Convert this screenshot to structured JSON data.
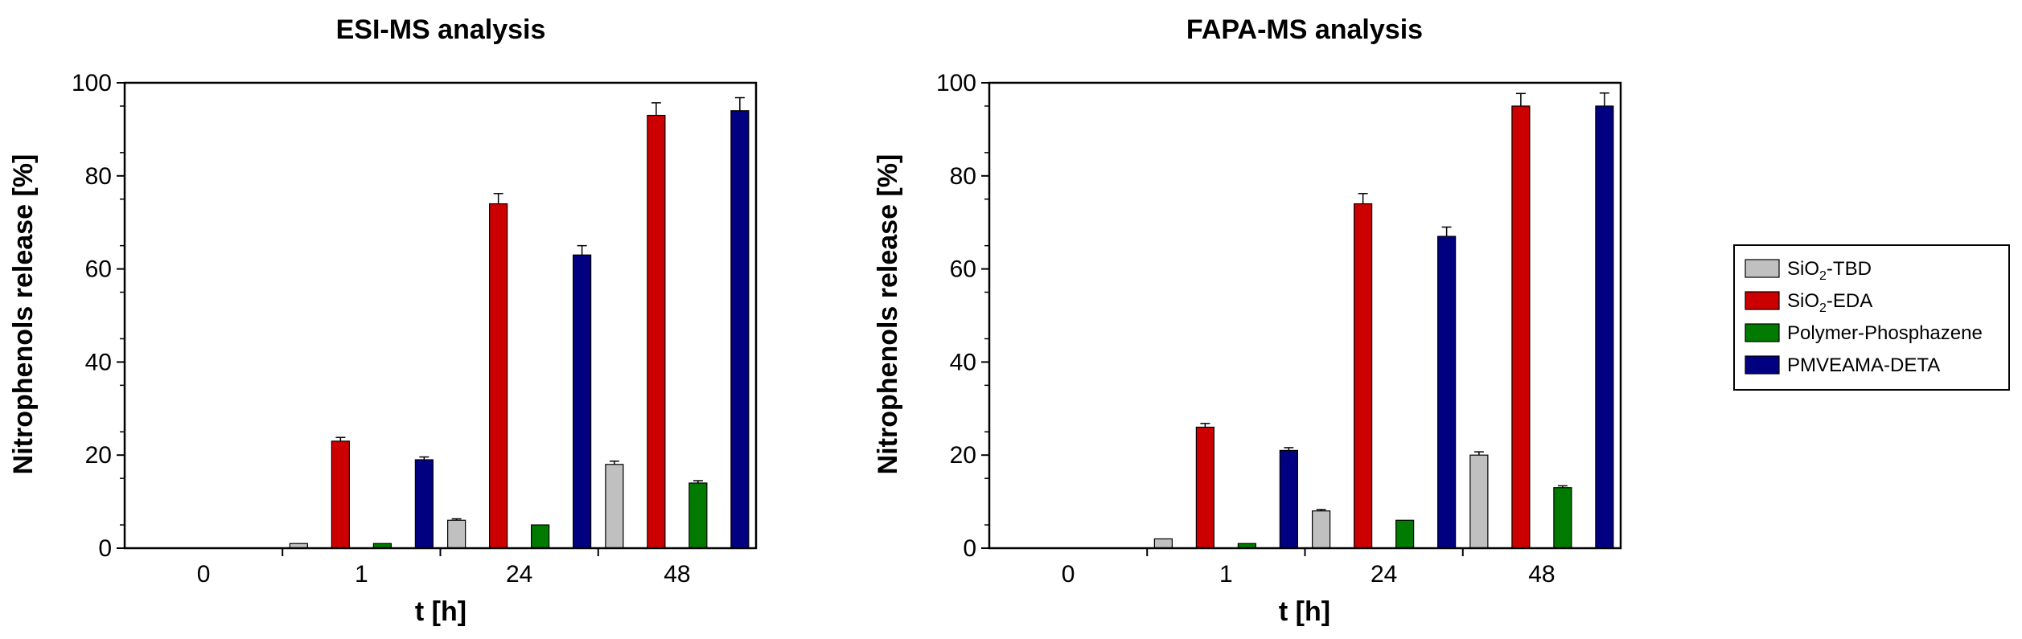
{
  "chart_data": [
    {
      "type": "bar",
      "title": "ESI-MS analysis",
      "xlabel": "t [h]",
      "ylabel": "Nitrophenols release [%]",
      "ylim": [
        0,
        100
      ],
      "yticks": [
        0,
        20,
        40,
        60,
        80,
        100
      ],
      "categories": [
        "0",
        "1",
        "24",
        "48"
      ],
      "grid": false,
      "series": [
        {
          "name": "SiO2-TBD",
          "values": [
            0,
            1,
            6,
            18
          ],
          "errors": [
            0,
            0,
            0.3,
            0.7
          ]
        },
        {
          "name": "SiO2-EDA",
          "values": [
            0,
            23,
            74,
            93
          ],
          "errors": [
            0,
            0.8,
            2.2,
            2.7
          ]
        },
        {
          "name": "Polymer-Phosphazene",
          "values": [
            0,
            1,
            5,
            14
          ],
          "errors": [
            0,
            0,
            0,
            0.5
          ]
        },
        {
          "name": "PMVEAMA-DETA",
          "values": [
            0,
            19,
            63,
            94
          ],
          "errors": [
            0,
            0.6,
            2.0,
            2.8
          ]
        }
      ]
    },
    {
      "type": "bar",
      "title": "FAPA-MS analysis",
      "xlabel": "t [h]",
      "ylabel": "Nitrophenols release [%]",
      "ylim": [
        0,
        100
      ],
      "yticks": [
        0,
        20,
        40,
        60,
        80,
        100
      ],
      "categories": [
        "0",
        "1",
        "24",
        "48"
      ],
      "grid": false,
      "series": [
        {
          "name": "SiO2-TBD",
          "values": [
            0,
            2,
            8,
            20
          ],
          "errors": [
            0,
            0,
            0.3,
            0.7
          ]
        },
        {
          "name": "SiO2-EDA",
          "values": [
            0,
            26,
            74,
            95
          ],
          "errors": [
            0,
            0.8,
            2.2,
            2.7
          ]
        },
        {
          "name": "Polymer-Phosphazene",
          "values": [
            0,
            1,
            6,
            13
          ],
          "errors": [
            0,
            0,
            0,
            0.4
          ]
        },
        {
          "name": "PMVEAMA-DETA",
          "values": [
            0,
            21,
            67,
            95
          ],
          "errors": [
            0,
            0.6,
            2.0,
            2.8
          ]
        }
      ]
    }
  ],
  "legend": {
    "placement": "right",
    "entries": [
      {
        "base": "SiO",
        "sub": "2",
        "rest": "-TBD",
        "color": "#c0c0c0"
      },
      {
        "base": "SiO",
        "sub": "2",
        "rest": "-EDA",
        "color": "#cc0000"
      },
      {
        "base": "Polymer-Phosphazene",
        "sub": "",
        "rest": "",
        "color": "#007a00"
      },
      {
        "base": "PMVEAMA-DETA",
        "sub": "",
        "rest": "",
        "color": "#000080"
      }
    ]
  },
  "colors": {
    "series": [
      "#c0c0c0",
      "#cc0000",
      "#007a00",
      "#000080"
    ],
    "axis": "#000000"
  }
}
